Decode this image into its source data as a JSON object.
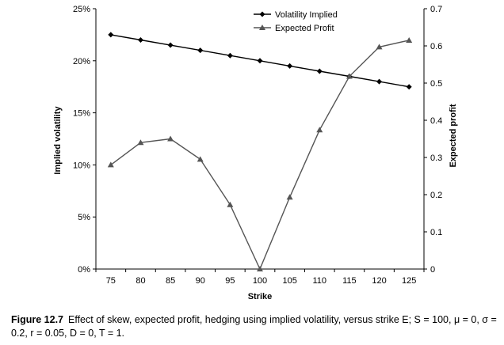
{
  "chart_data": {
    "type": "line",
    "x": [
      75,
      80,
      85,
      90,
      95,
      100,
      105,
      110,
      115,
      120,
      125
    ],
    "xlabel": "Strike",
    "ylabel": "Implied volatility",
    "y2label": "Expected profit",
    "xlim": [
      72.5,
      127.5
    ],
    "ylim": [
      0,
      0.25
    ],
    "y2lim": [
      0,
      0.7
    ],
    "x_ticks": [
      "75",
      "80",
      "85",
      "90",
      "95",
      "100",
      "105",
      "110",
      "115",
      "120",
      "125"
    ],
    "y_ticks": [
      "0%",
      "5%",
      "10%",
      "15%",
      "20%",
      "25%"
    ],
    "y_tick_values": [
      0,
      0.05,
      0.1,
      0.15,
      0.2,
      0.25
    ],
    "y2_ticks": [
      "0",
      "0.1",
      "0.2",
      "0.3",
      "0.4",
      "0.5",
      "0.6",
      "0.7"
    ],
    "y2_tick_values": [
      0,
      0.1,
      0.2,
      0.3,
      0.4,
      0.5,
      0.6,
      0.7
    ],
    "legend_position": "top-center",
    "series": [
      {
        "name": "Volatility Implied",
        "axis": "left",
        "marker": "diamond",
        "color": "#000000",
        "values": [
          0.225,
          0.22,
          0.215,
          0.21,
          0.205,
          0.2,
          0.195,
          0.19,
          0.185,
          0.18,
          0.175
        ]
      },
      {
        "name": "Expected Profit",
        "axis": "right",
        "marker": "triangle",
        "color": "#555555",
        "values": [
          0.28,
          0.34,
          0.35,
          0.295,
          0.173,
          0.0,
          0.193,
          0.374,
          0.518,
          0.597,
          0.615
        ]
      }
    ]
  },
  "caption": {
    "label": "Figure 12.7",
    "text": "Effect of skew, expected profit, hedging using implied volatility, versus strike E; S = 100, μ = 0, σ = 0.2, r = 0.05, D = 0, T = 1."
  }
}
